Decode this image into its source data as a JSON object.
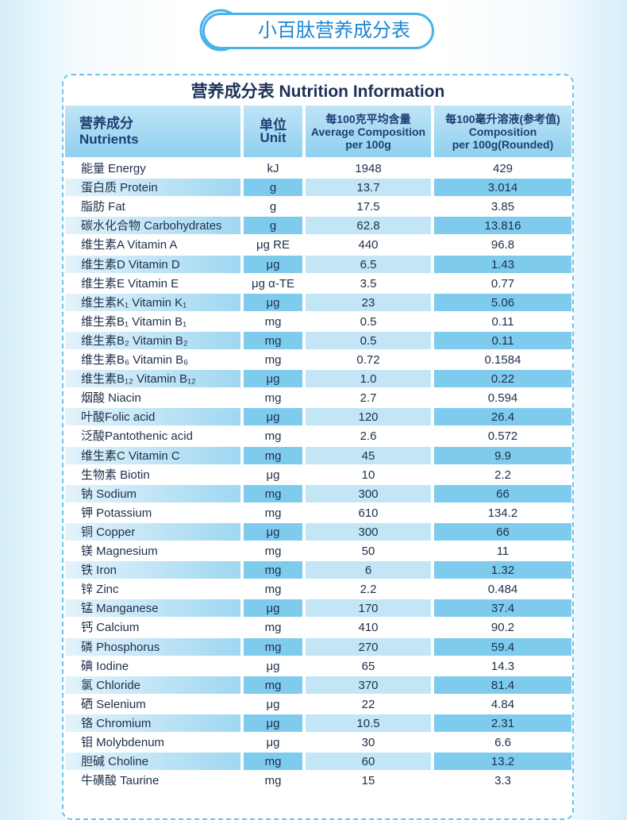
{
  "banner": {
    "title": "小百肽营养成分表"
  },
  "table": {
    "title": "营养成分表 Nutrition Information",
    "header": [
      [
        "营养成分",
        "Nutrients"
      ],
      [
        "单位",
        "Unit"
      ],
      [
        "每100克平均含量",
        "Average Composition",
        "per 100g"
      ],
      [
        "每100毫升溶液(参考值)",
        "Composition",
        "per 100g(Rounded)"
      ]
    ],
    "rows": [
      [
        "能量 Energy",
        "kJ",
        "1948",
        "429"
      ],
      [
        "蛋白质 Protein",
        "g",
        "13.7",
        "3.014"
      ],
      [
        "脂肪 Fat",
        "g",
        "17.5",
        "3.85"
      ],
      [
        "碳水化合物 Carbohydrates",
        "g",
        "62.8",
        "13.816"
      ],
      [
        "维生素A Vitamin A",
        "μg RE",
        "440",
        "96.8"
      ],
      [
        "维生素D Vitamin D",
        "μg",
        "6.5",
        "1.43"
      ],
      [
        "维生素E Vitamin E",
        "μg α-TE",
        "3.5",
        "0.77"
      ],
      [
        "维生素K₁ Vitamin K₁",
        "μg",
        "23",
        "5.06"
      ],
      [
        "维生素B₁ Vitamin B₁",
        "mg",
        "0.5",
        "0.11"
      ],
      [
        "维生素B₂ Vitamin B₂",
        "mg",
        "0.5",
        "0.11"
      ],
      [
        "维生素B₆ Vitamin B₆",
        "mg",
        "0.72",
        "0.1584"
      ],
      [
        "维生素B₁₂ Vitamin B₁₂",
        "μg",
        "1.0",
        "0.22"
      ],
      [
        "烟酸 Niacin",
        "mg",
        "2.7",
        "0.594"
      ],
      [
        "叶酸Folic acid",
        "μg",
        "120",
        "26.4"
      ],
      [
        "泛酸Pantothenic acid",
        "mg",
        "2.6",
        "0.572"
      ],
      [
        "维生素C Vitamin C",
        "mg",
        "45",
        "9.9"
      ],
      [
        "生物素 Biotin",
        "μg",
        "10",
        "2.2"
      ],
      [
        "钠 Sodium",
        "mg",
        "300",
        "66"
      ],
      [
        "钾 Potassium",
        "mg",
        "610",
        "134.2"
      ],
      [
        "铜 Copper",
        "μg",
        "300",
        "66"
      ],
      [
        "镁 Magnesium",
        "mg",
        "50",
        "11"
      ],
      [
        "铁 Iron",
        "mg",
        "6",
        "1.32"
      ],
      [
        "锌 Zinc",
        "mg",
        "2.2",
        "0.484"
      ],
      [
        "锰 Manganese",
        "μg",
        "170",
        "37.4"
      ],
      [
        "钙 Calcium",
        "mg",
        "410",
        "90.2"
      ],
      [
        "磷 Phosphorus",
        "mg",
        "270",
        "59.4"
      ],
      [
        "碘 Iodine",
        "μg",
        "65",
        "14.3"
      ],
      [
        "氯 Chloride",
        "mg",
        "370",
        "81.4"
      ],
      [
        "硒 Selenium",
        "μg",
        "22",
        "4.84"
      ],
      [
        "铬 Chromium",
        "μg",
        "10.5",
        "2.31"
      ],
      [
        "钼 Molybdenum",
        "μg",
        "30",
        "6.6"
      ],
      [
        "胆碱 Choline",
        "mg",
        "60",
        "13.2"
      ],
      [
        "牛磺酸 Taurine",
        "mg",
        "15",
        "3.3"
      ]
    ]
  }
}
